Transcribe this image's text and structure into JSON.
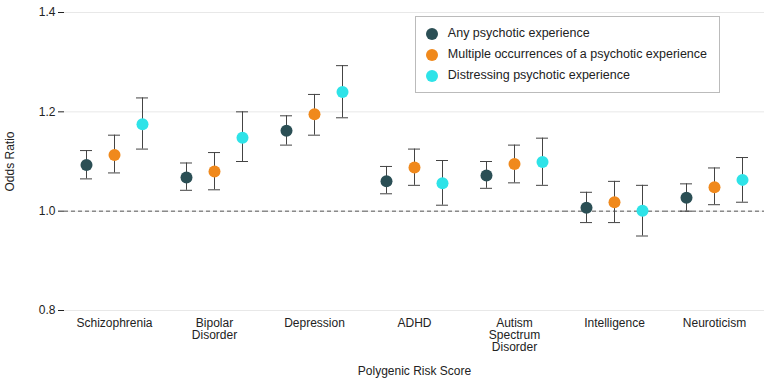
{
  "chart_data": {
    "type": "scatter",
    "x_label": "Polygenic Risk Score",
    "y_label": "Odds Ratio",
    "categories": [
      "Schizophrenia",
      "Bipolar Disorder",
      "Depression",
      "ADHD",
      "Autism Spectrum Disorder",
      "Intelligence",
      "Neuroticism"
    ],
    "series": [
      {
        "name": "Any psychotic experience",
        "color": "#2b4f55",
        "values": [
          1.093,
          1.068,
          1.162,
          1.06,
          1.072,
          1.007,
          1.027
        ],
        "lower": [
          1.065,
          1.042,
          1.133,
          1.035,
          1.046,
          0.977,
          1.0
        ],
        "upper": [
          1.122,
          1.097,
          1.192,
          1.09,
          1.1,
          1.038,
          1.055
        ]
      },
      {
        "name": "Multiple occurrences of a psychotic experience",
        "color": "#f0891c",
        "values": [
          1.113,
          1.08,
          1.195,
          1.088,
          1.095,
          1.018,
          1.048
        ],
        "lower": [
          1.077,
          1.043,
          1.153,
          1.052,
          1.057,
          0.977,
          1.013
        ],
        "upper": [
          1.153,
          1.118,
          1.235,
          1.125,
          1.133,
          1.06,
          1.087
        ]
      },
      {
        "name": "Distressing psychotic experience",
        "color": "#2ee3e8",
        "values": [
          1.175,
          1.148,
          1.24,
          1.056,
          1.099,
          1.001,
          1.063
        ],
        "lower": [
          1.125,
          1.1,
          1.188,
          1.012,
          1.052,
          0.95,
          1.018
        ],
        "upper": [
          1.228,
          1.2,
          1.293,
          1.102,
          1.147,
          1.052,
          1.108
        ]
      }
    ],
    "ylim": [
      0.8,
      1.4
    ],
    "yticks": [
      0.8,
      {
        "value": 1,
        "label": "1.0"
      },
      1.2,
      1.4
    ],
    "grid": true,
    "legend": "upper right",
    "reference_line": 1
  }
}
